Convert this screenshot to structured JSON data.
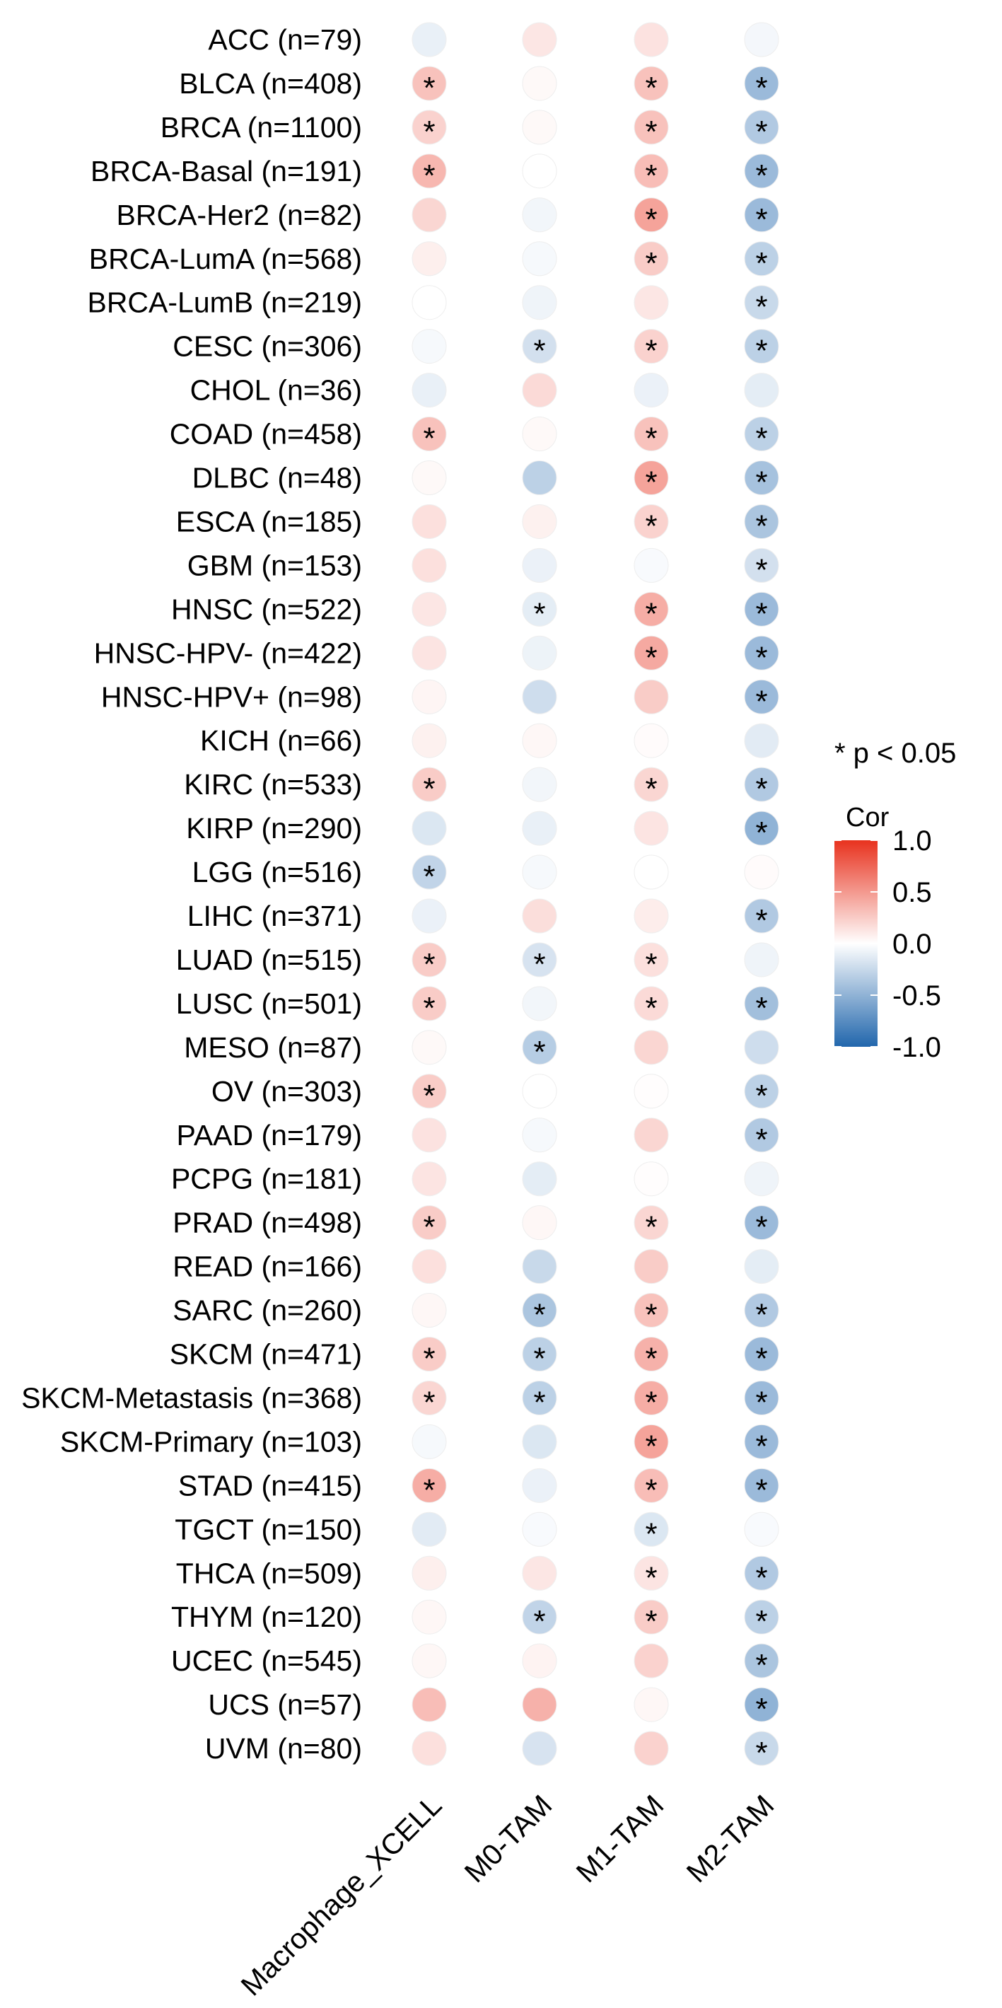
{
  "chart_data": {
    "type": "heatmap",
    "title": "",
    "xlabel": "",
    "ylabel": "",
    "columns": [
      "Macrophage_XCELL",
      "M0-TAM",
      "M1-TAM",
      "M2-TAM"
    ],
    "rows": [
      "ACC (n=79)",
      "BLCA (n=408)",
      "BRCA (n=1100)",
      "BRCA-Basal (n=191)",
      "BRCA-Her2 (n=82)",
      "BRCA-LumA (n=568)",
      "BRCA-LumB (n=219)",
      "CESC (n=306)",
      "CHOL (n=36)",
      "COAD (n=458)",
      "DLBC (n=48)",
      "ESCA (n=185)",
      "GBM (n=153)",
      "HNSC (n=522)",
      "HNSC-HPV- (n=422)",
      "HNSC-HPV+ (n=98)",
      "KICH (n=66)",
      "KIRC (n=533)",
      "KIRP (n=290)",
      "LGG (n=516)",
      "LIHC (n=371)",
      "LUAD (n=515)",
      "LUSC (n=501)",
      "MESO (n=87)",
      "OV (n=303)",
      "PAAD (n=179)",
      "PCPG (n=181)",
      "PRAD (n=498)",
      "READ (n=166)",
      "SARC (n=260)",
      "SKCM (n=471)",
      "SKCM-Metastasis (n=368)",
      "SKCM-Primary (n=103)",
      "STAD (n=415)",
      "TGCT (n=150)",
      "THCA (n=509)",
      "THYM (n=120)",
      "UCEC (n=545)",
      "UCS (n=57)",
      "UVM (n=80)"
    ],
    "values": [
      [
        -0.1,
        0.12,
        0.14,
        -0.05
      ],
      [
        0.3,
        0.03,
        0.3,
        -0.45
      ],
      [
        0.22,
        0.03,
        0.3,
        -0.35
      ],
      [
        0.35,
        0.0,
        0.32,
        -0.45
      ],
      [
        0.2,
        -0.06,
        0.45,
        -0.45
      ],
      [
        0.08,
        -0.04,
        0.25,
        -0.3
      ],
      [
        0.0,
        -0.07,
        0.12,
        -0.25
      ],
      [
        -0.04,
        -0.2,
        0.22,
        -0.3
      ],
      [
        -0.1,
        0.18,
        -0.09,
        -0.12
      ],
      [
        0.3,
        0.03,
        0.3,
        -0.3
      ],
      [
        0.03,
        -0.3,
        0.45,
        -0.4
      ],
      [
        0.15,
        0.07,
        0.22,
        -0.38
      ],
      [
        0.15,
        -0.09,
        -0.03,
        -0.2
      ],
      [
        0.12,
        -0.12,
        0.4,
        -0.45
      ],
      [
        0.13,
        -0.08,
        0.42,
        -0.45
      ],
      [
        0.05,
        -0.22,
        0.25,
        -0.45
      ],
      [
        0.07,
        0.04,
        0.02,
        -0.13
      ],
      [
        0.25,
        -0.06,
        0.2,
        -0.35
      ],
      [
        -0.16,
        -0.1,
        0.13,
        -0.5
      ],
      [
        -0.28,
        -0.04,
        0.0,
        0.02
      ],
      [
        -0.09,
        0.16,
        0.09,
        -0.35
      ],
      [
        0.25,
        -0.18,
        0.15,
        -0.07
      ],
      [
        0.25,
        -0.06,
        0.18,
        -0.42
      ],
      [
        0.03,
        -0.33,
        0.2,
        -0.22
      ],
      [
        0.25,
        0.0,
        0.01,
        -0.3
      ],
      [
        0.14,
        -0.04,
        0.2,
        -0.35
      ],
      [
        0.13,
        -0.12,
        0.01,
        -0.07
      ],
      [
        0.25,
        0.04,
        0.2,
        -0.45
      ],
      [
        0.15,
        -0.25,
        0.25,
        -0.12
      ],
      [
        0.04,
        -0.38,
        0.3,
        -0.35
      ],
      [
        0.25,
        -0.3,
        0.38,
        -0.45
      ],
      [
        0.2,
        -0.3,
        0.4,
        -0.45
      ],
      [
        -0.04,
        -0.16,
        0.45,
        -0.45
      ],
      [
        0.4,
        -0.09,
        0.32,
        -0.45
      ],
      [
        -0.13,
        -0.03,
        -0.16,
        -0.03
      ],
      [
        0.08,
        0.12,
        0.13,
        -0.35
      ],
      [
        0.04,
        -0.28,
        0.25,
        -0.3
      ],
      [
        0.04,
        0.06,
        0.22,
        -0.38
      ],
      [
        0.32,
        0.38,
        0.04,
        -0.5
      ],
      [
        0.15,
        -0.18,
        0.22,
        -0.25
      ]
    ],
    "significant": [
      [
        false,
        false,
        false,
        false
      ],
      [
        true,
        false,
        true,
        true
      ],
      [
        true,
        false,
        true,
        true
      ],
      [
        true,
        false,
        true,
        true
      ],
      [
        false,
        false,
        true,
        true
      ],
      [
        false,
        false,
        true,
        true
      ],
      [
        false,
        false,
        false,
        true
      ],
      [
        false,
        true,
        true,
        true
      ],
      [
        false,
        false,
        false,
        false
      ],
      [
        true,
        false,
        true,
        true
      ],
      [
        false,
        false,
        true,
        true
      ],
      [
        false,
        false,
        true,
        true
      ],
      [
        false,
        false,
        false,
        true
      ],
      [
        false,
        true,
        true,
        true
      ],
      [
        false,
        false,
        true,
        true
      ],
      [
        false,
        false,
        false,
        true
      ],
      [
        false,
        false,
        false,
        false
      ],
      [
        true,
        false,
        true,
        true
      ],
      [
        false,
        false,
        false,
        true
      ],
      [
        true,
        false,
        false,
        false
      ],
      [
        false,
        false,
        false,
        true
      ],
      [
        true,
        true,
        true,
        false
      ],
      [
        true,
        false,
        true,
        true
      ],
      [
        false,
        true,
        false,
        false
      ],
      [
        true,
        false,
        false,
        true
      ],
      [
        false,
        false,
        false,
        true
      ],
      [
        false,
        false,
        false,
        false
      ],
      [
        true,
        false,
        true,
        true
      ],
      [
        false,
        false,
        false,
        false
      ],
      [
        false,
        true,
        true,
        true
      ],
      [
        true,
        true,
        true,
        true
      ],
      [
        true,
        true,
        true,
        true
      ],
      [
        false,
        false,
        true,
        true
      ],
      [
        true,
        false,
        true,
        true
      ],
      [
        false,
        false,
        true,
        false
      ],
      [
        false,
        false,
        true,
        true
      ],
      [
        false,
        true,
        true,
        true
      ],
      [
        false,
        false,
        false,
        true
      ],
      [
        false,
        false,
        false,
        true
      ],
      [
        false,
        false,
        false,
        true
      ]
    ],
    "star_symbol": "*",
    "significance_note": "* p < 0.05",
    "legend": {
      "title": "Cor",
      "ticks": [
        "1.0",
        "0.5",
        "0.0",
        "-0.5",
        "-1.0"
      ],
      "tick_values": [
        1.0,
        0.5,
        0.0,
        -0.5,
        -1.0
      ],
      "range": [
        -1.0,
        1.0
      ],
      "placement": "right"
    },
    "colors": {
      "negative": "#2166AC",
      "mid": "#FFFFFF",
      "positive": "#E8321E"
    },
    "grid": false
  }
}
